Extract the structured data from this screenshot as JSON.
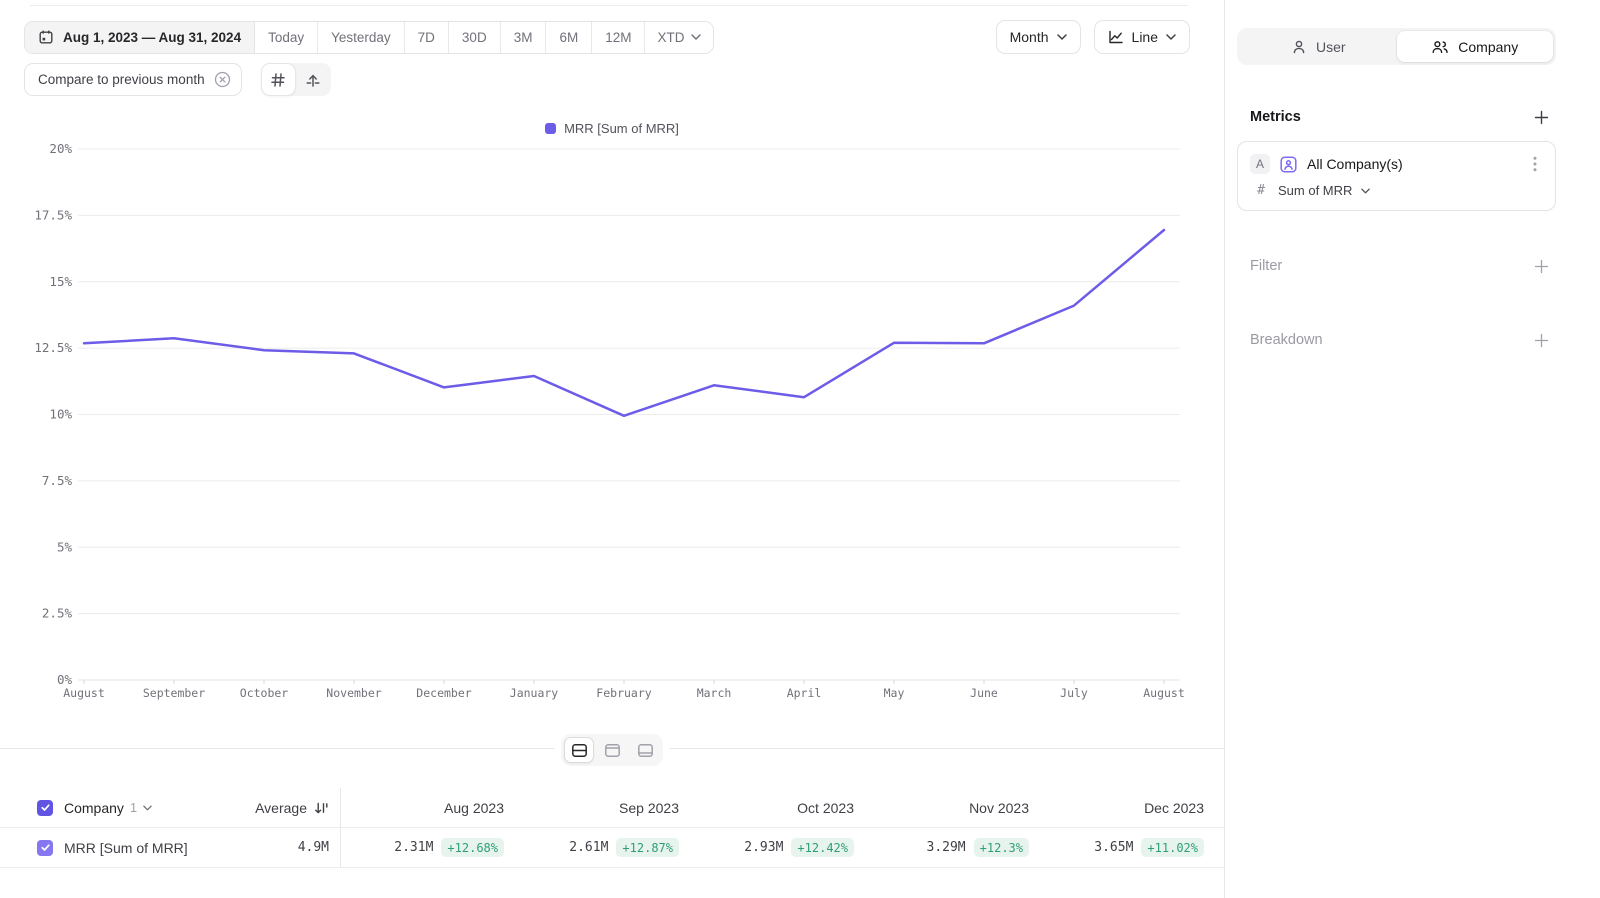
{
  "toolbar": {
    "date_range": "Aug 1, 2023 — Aug 31, 2024",
    "presets": [
      "Today",
      "Yesterday",
      "7D",
      "30D",
      "3M",
      "6M",
      "12M"
    ],
    "xtd_label": "XTD",
    "granularity": "Month",
    "chart_type": "Line",
    "compare_chip": "Compare to previous month"
  },
  "chart_data": {
    "type": "line",
    "title": "",
    "xlabel": "",
    "ylabel": "",
    "ylim": [
      0,
      20
    ],
    "grid": true,
    "legend_position": "top",
    "line_color": "#6c5ce7",
    "x": [
      "August",
      "September",
      "October",
      "November",
      "December",
      "January",
      "February",
      "March",
      "April",
      "May",
      "June",
      "July",
      "August"
    ],
    "y_ticks": [
      "0%",
      "2.5%",
      "5%",
      "7.5%",
      "10%",
      "12.5%",
      "15%",
      "17.5%",
      "20%"
    ],
    "series": [
      {
        "name": "MRR [Sum of MRR]",
        "values": [
          12.68,
          12.87,
          12.42,
          12.3,
          11.02,
          11.45,
          9.95,
          11.1,
          10.65,
          12.7,
          12.68,
          14.1,
          16.95
        ]
      }
    ]
  },
  "sidebar": {
    "tabs": [
      {
        "label": "User",
        "active": false
      },
      {
        "label": "Company",
        "active": true
      }
    ],
    "metrics_title": "Metrics",
    "metric_card": {
      "badge": "A",
      "name": "All Company(s)",
      "hash": "#",
      "aggregation": "Sum of MRR"
    },
    "filter_label": "Filter",
    "breakdown_label": "Breakdown"
  },
  "table": {
    "group_label": "Company",
    "group_count": "1",
    "average_label": "Average",
    "row_label": "MRR [Sum of MRR]",
    "average_value": "4.9M",
    "columns": [
      {
        "header": "Aug 2023",
        "value": "2.31M",
        "delta": "+12.68%"
      },
      {
        "header": "Sep 2023",
        "value": "2.61M",
        "delta": "+12.87%"
      },
      {
        "header": "Oct 2023",
        "value": "2.93M",
        "delta": "+12.42%"
      },
      {
        "header": "Nov 2023",
        "value": "3.29M",
        "delta": "+12.3%"
      },
      {
        "header": "Dec 2023",
        "value": "3.65M",
        "delta": "+11.02%"
      }
    ]
  },
  "colors": {
    "accent_purple": "#6c5ce7",
    "checkbox_header": "#6254e3",
    "checkbox_row": "#8677f0",
    "delta_green_text": "#2f9e77",
    "delta_green_bg": "#e7f4ee",
    "grid_line": "#ececef"
  }
}
